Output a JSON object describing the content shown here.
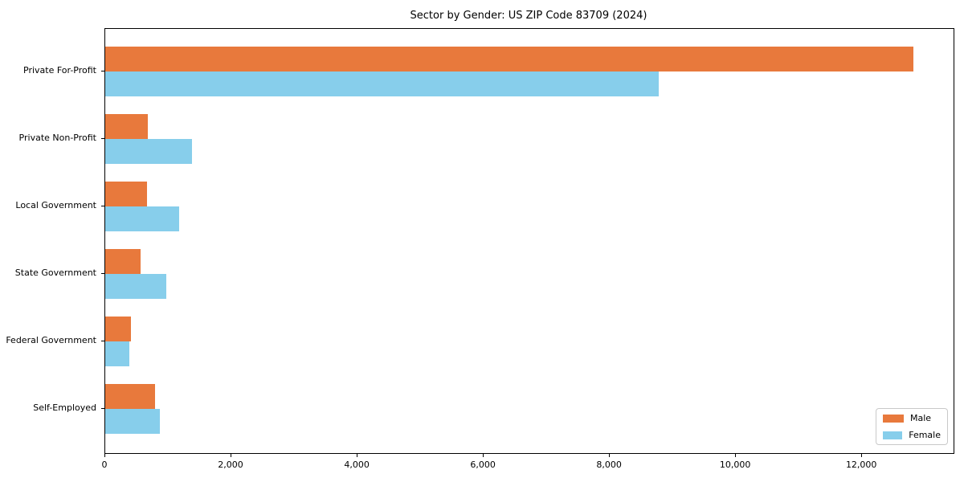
{
  "title": "Sector by Gender: US ZIP Code 83709 (2024)",
  "colors": {
    "male": "#e8793c",
    "female": "#87ceeb",
    "axis": "#000000",
    "legend_border": "#c9c9c9",
    "background": "#ffffff"
  },
  "chart_data": {
    "type": "bar",
    "orientation": "horizontal",
    "title": "Sector by Gender: US ZIP Code 83709 (2024)",
    "xlabel": "",
    "ylabel": "",
    "categories": [
      "Private For-Profit",
      "Private Non-Profit",
      "Local Government",
      "State Government",
      "Federal Government",
      "Self-Employed"
    ],
    "series": [
      {
        "name": "Male",
        "color": "#e8793c",
        "values": [
          12810,
          670,
          660,
          565,
          405,
          785
        ]
      },
      {
        "name": "Female",
        "color": "#87ceeb",
        "values": [
          8770,
          1380,
          1175,
          970,
          380,
          870
        ]
      }
    ],
    "xlim": [
      0,
      13450
    ],
    "xticks": [
      0,
      2000,
      4000,
      6000,
      8000,
      10000,
      12000
    ],
    "xtick_labels": [
      "0",
      "2,000",
      "4,000",
      "6,000",
      "8,000",
      "10,000",
      "12,000"
    ],
    "grid": false,
    "legend_position": "lower right"
  }
}
